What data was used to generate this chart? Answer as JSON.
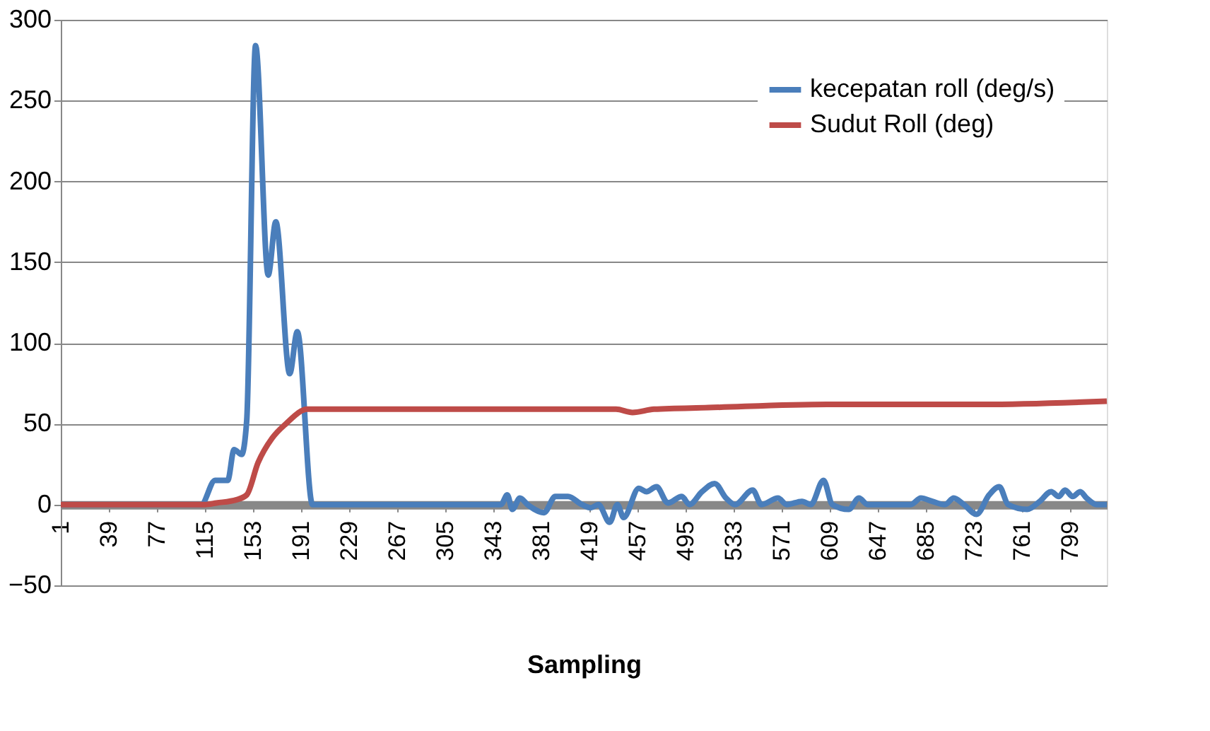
{
  "chart_data": {
    "type": "line",
    "xlabel": "Sampling",
    "xlim": [
      1,
      828
    ],
    "xticks": [
      1,
      39,
      77,
      115,
      153,
      191,
      229,
      267,
      305,
      343,
      381,
      419,
      457,
      495,
      533,
      571,
      609,
      647,
      685,
      723,
      761,
      799
    ],
    "ylim": [
      -50,
      300
    ],
    "yticks": [
      -50,
      0,
      50,
      100,
      150,
      200,
      250,
      300
    ],
    "grid": "y",
    "legend": "top right",
    "series": [
      {
        "name": "kecepatan roll (deg/s)",
        "color": "#4a7ebb",
        "x": [
          1,
          112,
          123,
          133,
          138,
          144,
          148,
          155,
          165,
          171,
          182,
          188,
          200,
          349,
          354,
          358,
          364,
          370,
          383,
          392,
          402,
          413,
          420,
          426,
          435,
          441,
          446,
          458,
          464,
          472,
          481,
          492,
          498,
          508,
          518,
          527,
          534,
          548,
          555,
          568,
          575,
          587,
          594,
          604,
          611,
          624,
          632,
          639,
          673,
          681,
          690,
          700,
          707,
          715,
          725,
          735,
          743,
          750,
          765,
          775,
          784,
          790,
          795,
          801,
          807,
          812,
          820,
          828
        ],
        "values": [
          0,
          0,
          15,
          15,
          34,
          31,
          52,
          284,
          142,
          175,
          81,
          107,
          0,
          0,
          6,
          -3,
          4,
          0,
          -5,
          5,
          5,
          0,
          -2,
          0,
          -11,
          0,
          -8,
          10,
          8,
          11,
          1,
          5,
          0,
          8,
          13,
          4,
          0,
          9,
          0,
          4,
          0,
          2,
          0,
          15,
          0,
          -3,
          4,
          0,
          0,
          4,
          2,
          0,
          4,
          0,
          -6,
          6,
          11,
          0,
          -3,
          2,
          8,
          5,
          9,
          5,
          8,
          4,
          0,
          0
        ]
      },
      {
        "name": "Sudut Roll (deg)",
        "color": "#be4b48",
        "x": [
          1,
          115,
          124,
          140,
          148,
          157,
          168,
          179,
          196,
          300,
          440,
          453,
          470,
          513,
          607,
          730,
          828
        ],
        "values": [
          0,
          0,
          1,
          3,
          6,
          26,
          41,
          50,
          59,
          59,
          59,
          57,
          59,
          60,
          62,
          62,
          64
        ]
      }
    ]
  }
}
